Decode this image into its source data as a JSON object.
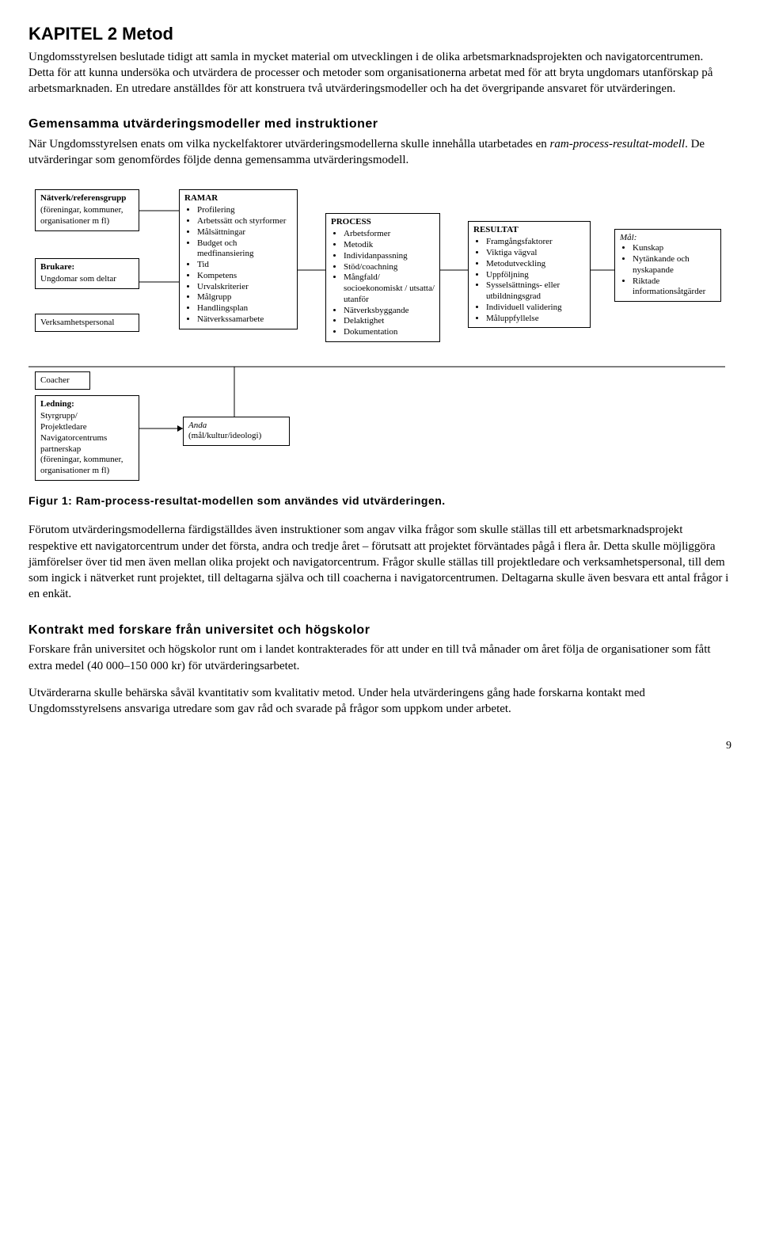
{
  "heading": "KAPITEL 2 Metod",
  "para1": "Ungdomsstyrelsen beslutade tidigt att samla in mycket material om utvecklingen i de olika arbetsmarknadsprojekten och navigatorcentrumen. Detta för att kunna undersöka och utvärdera de processer och metoder som organisationerna arbetat med för att bryta ungdomars utanförskap på arbetsmarknaden. En utredare anställdes för att konstruera två utvärderingsmodeller och ha det övergripande ansvaret för utvärderingen.",
  "h2a": "Gemensamma utvärderingsmodeller med instruktioner",
  "para2a": "När Ungdomsstyrelsen enats om vilka nyckelfaktorer utvärderingsmodellerna skulle innehålla utarbetades en ",
  "para2b": "ram-process-resultat-modell",
  "para2c": ". De utvärderingar som genomfördes följde denna gemensamma utvärderingsmodell.",
  "figcaption": "Figur 1: Ram-process-resultat-modellen som användes vid utvärderingen.",
  "para3": "Förutom utvärderingsmodellerna färdigställdes även instruktioner som angav vilka frågor som skulle ställas till ett arbetsmarknadsprojekt respektive ett navigatorcentrum under det första, andra och tredje året – förutsatt att projektet förväntades pågå i flera år. Detta skulle möjliggöra jämförelser över tid men även mellan olika projekt och navigatorcentrum. Frågor skulle ställas till projektledare och verksamhetspersonal, till dem som ingick i nätverket runt projektet, till deltagarna själva och till coacherna i navigatorcentrumen. Deltagarna skulle även besvara ett antal frågor i en enkät.",
  "h2b": "Kontrakt med forskare från universitet och högskolor",
  "para4": "Forskare från universitet och högskolor runt om i landet kontrakterades för att under en till två månader om året följa de organisationer som fått extra medel (40 000–150 000 kr) för utvärderingsarbetet.",
  "para5": "Utvärderarna skulle behärska såväl kvantitativ som kvalitativ metod. Under hela utvärderingens gång hade forskarna kontakt med Ungdomsstyrelsens ansvariga utredare som gav råd och svarade på frågor som uppkom under arbetet.",
  "pagenum": "9",
  "diagram": {
    "networkBox": {
      "title": "Nätverk/referensgrupp",
      "sub": "(föreningar, kommuner, organisationer m fl)"
    },
    "brukareBox": {
      "title": "Brukare:",
      "sub": "Ungdomar som deltar"
    },
    "verksamLabel": "Verksamhetspersonal",
    "coacherLabel": "Coacher",
    "ledningBox": {
      "l1": "Ledning:",
      "l2": "Styrgrupp/",
      "l3": "Projektledare",
      "l4": "Navigatorcentrums partnerskap",
      "l5": "(föreningar, kommuner, organisationer m fl)"
    },
    "andaBox": {
      "l1": "Anda",
      "l2": "(mål/kultur/ideologi)"
    },
    "ramar": {
      "title": "RAMAR",
      "items": [
        "Profilering",
        "Arbetssätt och styrformer",
        "Målsättningar",
        "Budget och medfinansiering",
        "Tid",
        "Kompetens",
        "Urvalskriterier",
        "Målgrupp",
        "Handlingsplan",
        "Nätverkssamarbete"
      ]
    },
    "process": {
      "title": "PROCESS",
      "items": [
        "Arbetsformer",
        "Metodik",
        "Individanpassning",
        "Stöd/coachning",
        "Mångfald/ socioekonomiskt / utsatta/ utanför",
        "Nätverksbyggande",
        "Delaktighet",
        "Dokumentation"
      ]
    },
    "resultat": {
      "title": "RESULTAT",
      "items": [
        "Framgångsfaktorer",
        "Viktiga vägval",
        "Metodutveckling",
        "Uppföljning",
        "Sysselsättnings- eller utbildningsgrad",
        "Individuell validering",
        "Måluppfyllelse"
      ]
    },
    "mal": {
      "title": "Mål:",
      "items": [
        "Kunskap",
        "Nytänkande och nyskapande",
        "Riktade informationsåtgärder"
      ]
    }
  }
}
